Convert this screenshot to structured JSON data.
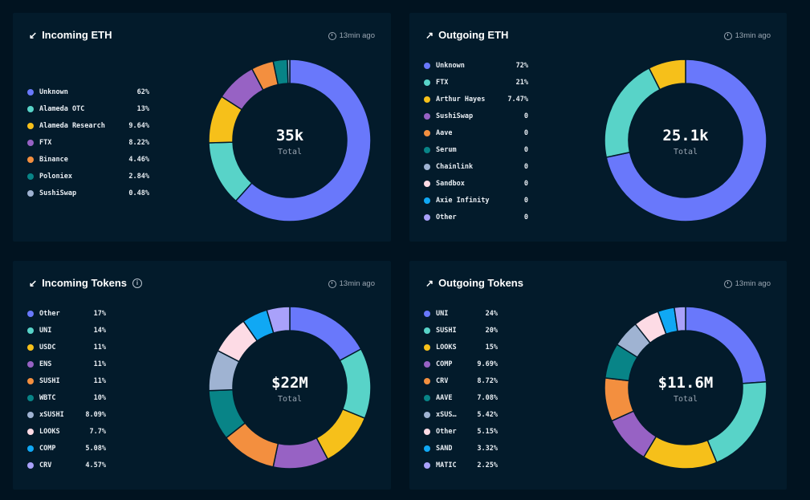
{
  "charts": {
    "incoming_eth": {
      "title": "Incoming ETH",
      "arrow": "↙",
      "timestamp": "13min ago",
      "total": "35k",
      "total_label": "Total",
      "legend": [
        {
          "label": "Unknown",
          "value": "62%",
          "color": "#6978fb"
        },
        {
          "label": "Alameda OTC",
          "value": "13%",
          "color": "#58d3c8"
        },
        {
          "label": "Alameda Research",
          "value": "9.64%",
          "color": "#f6c01a"
        },
        {
          "label": "FTX",
          "value": "8.22%",
          "color": "#9762c4"
        },
        {
          "label": "Binance",
          "value": "4.46%",
          "color": "#f38f3f"
        },
        {
          "label": "Poloniex",
          "value": "2.84%",
          "color": "#088487"
        },
        {
          "label": "SushiSwap",
          "value": "0.48%",
          "color": "#9fb3d2"
        }
      ]
    },
    "outgoing_eth": {
      "title": "Outgoing ETH",
      "arrow": "↗",
      "timestamp": "13min ago",
      "total": "25.1k",
      "total_label": "Total",
      "legend": [
        {
          "label": "Unknown",
          "value": "72%",
          "color": "#6978fb"
        },
        {
          "label": "FTX",
          "value": "21%",
          "color": "#58d3c8"
        },
        {
          "label": "Arthur Hayes",
          "value": "7.47%",
          "color": "#f6c01a"
        },
        {
          "label": "SushiSwap",
          "value": "0",
          "color": "#9762c4"
        },
        {
          "label": "Aave",
          "value": "0",
          "color": "#f38f3f"
        },
        {
          "label": "Serum",
          "value": "0",
          "color": "#088487"
        },
        {
          "label": "Chainlink",
          "value": "0",
          "color": "#9fb3d2"
        },
        {
          "label": "Sandbox",
          "value": "0",
          "color": "#fddbe5"
        },
        {
          "label": "Axie Infinity",
          "value": "0",
          "color": "#10a8f4"
        },
        {
          "label": "Other",
          "value": "0",
          "color": "#a9a1fa"
        }
      ]
    },
    "incoming_tokens": {
      "title": "Incoming Tokens",
      "arrow": "↙",
      "info": "i",
      "timestamp": "13min ago",
      "total": "$22M",
      "total_label": "Total",
      "legend": [
        {
          "label": "Other",
          "value": "17%",
          "color": "#6978fb"
        },
        {
          "label": "UNI",
          "value": "14%",
          "color": "#58d3c8"
        },
        {
          "label": "USDC",
          "value": "11%",
          "color": "#f6c01a"
        },
        {
          "label": "ENS",
          "value": "11%",
          "color": "#9762c4"
        },
        {
          "label": "SUSHI",
          "value": "11%",
          "color": "#f38f3f"
        },
        {
          "label": "WBTC",
          "value": "10%",
          "color": "#088487"
        },
        {
          "label": "xSUSHI",
          "value": "8.09%",
          "color": "#9fb3d2"
        },
        {
          "label": "LOOKS",
          "value": "7.7%",
          "color": "#fddbe5"
        },
        {
          "label": "COMP",
          "value": "5.08%",
          "color": "#10a8f4"
        },
        {
          "label": "CRV",
          "value": "4.57%",
          "color": "#a9a1fa"
        }
      ]
    },
    "outgoing_tokens": {
      "title": "Outgoing Tokens",
      "arrow": "↗",
      "timestamp": "13min ago",
      "total": "$11.6M",
      "total_label": "Total",
      "legend": [
        {
          "label": "UNI",
          "value": "24%",
          "color": "#6978fb"
        },
        {
          "label": "SUSHI",
          "value": "20%",
          "color": "#58d3c8"
        },
        {
          "label": "LOOKS",
          "value": "15%",
          "color": "#f6c01a"
        },
        {
          "label": "COMP",
          "value": "9.69%",
          "color": "#9762c4"
        },
        {
          "label": "CRV",
          "value": "8.72%",
          "color": "#f38f3f"
        },
        {
          "label": "AAVE",
          "value": "7.08%",
          "color": "#088487"
        },
        {
          "label": "xSUS…",
          "value": "5.42%",
          "color": "#9fb3d2"
        },
        {
          "label": "Other",
          "value": "5.15%",
          "color": "#fddbe5"
        },
        {
          "label": "SAND",
          "value": "3.32%",
          "color": "#10a8f4"
        },
        {
          "label": "MATIC",
          "value": "2.25%",
          "color": "#a9a1fa"
        }
      ]
    }
  },
  "chart_data": [
    {
      "type": "pie",
      "title": "Incoming ETH",
      "total": "35k",
      "categories": [
        "Unknown",
        "Alameda OTC",
        "Alameda Research",
        "FTX",
        "Binance",
        "Poloniex",
        "SushiSwap"
      ],
      "values": [
        62,
        13,
        9.64,
        8.22,
        4.46,
        2.84,
        0.48
      ],
      "donut": true
    },
    {
      "type": "pie",
      "title": "Outgoing ETH",
      "total": "25.1k",
      "categories": [
        "Unknown",
        "FTX",
        "Arthur Hayes",
        "SushiSwap",
        "Aave",
        "Serum",
        "Chainlink",
        "Sandbox",
        "Axie Infinity",
        "Other"
      ],
      "values": [
        72,
        21,
        7.47,
        0,
        0,
        0,
        0,
        0,
        0,
        0
      ],
      "donut": true
    },
    {
      "type": "pie",
      "title": "Incoming Tokens",
      "total": "$22M",
      "categories": [
        "Other",
        "UNI",
        "USDC",
        "ENS",
        "SUSHI",
        "WBTC",
        "xSUSHI",
        "LOOKS",
        "COMP",
        "CRV"
      ],
      "values": [
        17,
        14,
        11,
        11,
        11,
        10,
        8.09,
        7.7,
        5.08,
        4.57
      ],
      "donut": true
    },
    {
      "type": "pie",
      "title": "Outgoing Tokens",
      "total": "$11.6M",
      "categories": [
        "UNI",
        "SUSHI",
        "LOOKS",
        "COMP",
        "CRV",
        "AAVE",
        "xSUS…",
        "Other",
        "SAND",
        "MATIC"
      ],
      "values": [
        24,
        20,
        15,
        9.69,
        8.72,
        7.08,
        5.42,
        5.15,
        3.32,
        2.25
      ],
      "donut": true
    }
  ]
}
